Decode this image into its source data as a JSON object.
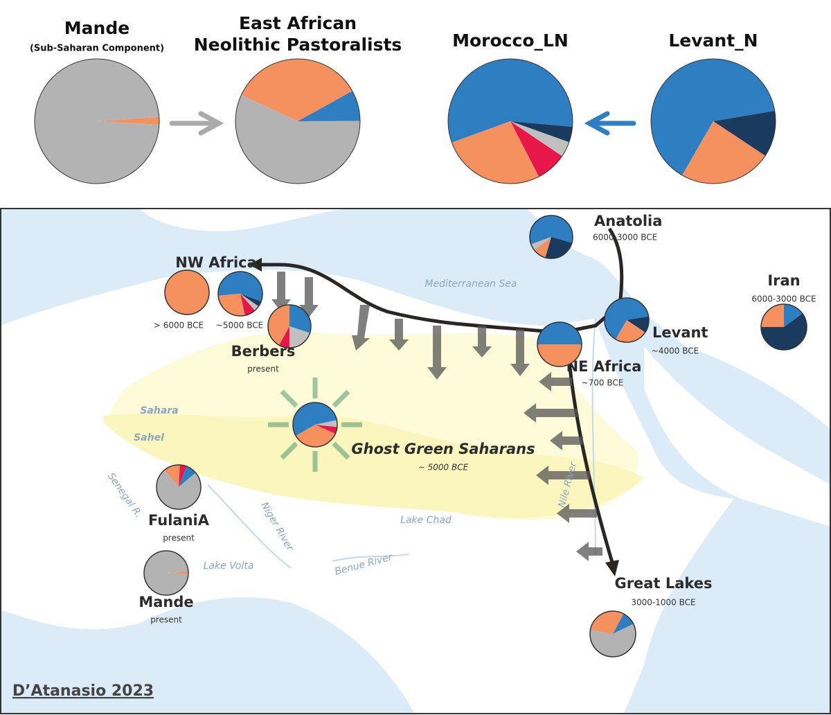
{
  "top_panel": {
    "pies": [
      {
        "title_lines": [
          "Mande"
        ],
        "subtitle": "(Sub-Saharan Component)",
        "slices": [
          {
            "color": "#f4915e",
            "value": 2
          },
          {
            "color": "#b3b3b3",
            "value": 98
          }
        ]
      },
      {
        "title_lines": [
          "East African",
          "Neolithic Pastoralists"
        ],
        "slices": [
          {
            "color": "#f4915e",
            "value": 35
          },
          {
            "color": "#2e7fc1",
            "value": 8
          },
          {
            "color": "#b3b3b3",
            "value": 57
          }
        ]
      },
      {
        "title_lines": [
          "Morocco_LN"
        ],
        "slices": [
          {
            "color": "#2e7fc1",
            "value": 57
          },
          {
            "color": "#1a3a5e",
            "value": 4
          },
          {
            "color": "#c0c0c0",
            "value": 4
          },
          {
            "color": "#e8174a",
            "value": 8
          },
          {
            "color": "#f4915e",
            "value": 27
          }
        ]
      },
      {
        "title_lines": [
          "Levant_N"
        ],
        "slices": [
          {
            "color": "#2e7fc1",
            "value": 64
          },
          {
            "color": "#1a3a5e",
            "value": 12
          },
          {
            "color": "#f4915e",
            "value": 24
          }
        ]
      }
    ]
  },
  "map": {
    "places": [
      {
        "label": "Anatolia",
        "pies": [
          {
            "caption": "6000-3000 BCE",
            "slices": [
              {
                "color": "#2e7fc1",
                "value": 60
              },
              {
                "color": "#1a3a5e",
                "value": 25
              },
              {
                "color": "#f4915e",
                "value": 10
              },
              {
                "color": "#c0c0c0",
                "value": 5
              }
            ]
          }
        ]
      },
      {
        "label": "NW Africa",
        "pies": [
          {
            "caption": "> 6000 BCE",
            "slices": [
              {
                "color": "#f4915e",
                "value": 100
              }
            ]
          },
          {
            "caption": "~5000 BCE",
            "slices": [
              {
                "color": "#2e7fc1",
                "value": 57
              },
              {
                "color": "#1a3a5e",
                "value": 4
              },
              {
                "color": "#c0c0c0",
                "value": 4
              },
              {
                "color": "#e8174a",
                "value": 8
              },
              {
                "color": "#f4915e",
                "value": 27
              }
            ]
          }
        ]
      },
      {
        "label": "Berbers",
        "pies": [
          {
            "caption": "present",
            "slices": [
              {
                "color": "#2e7fc1",
                "value": 30
              },
              {
                "color": "#c0c0c0",
                "value": 20
              },
              {
                "color": "#e8174a",
                "value": 8
              },
              {
                "color": "#f4915e",
                "value": 42
              }
            ]
          }
        ]
      },
      {
        "label": "Levant",
        "pies": [
          {
            "caption": "~4000 BCE",
            "slices": [
              {
                "color": "#2e7fc1",
                "value": 64
              },
              {
                "color": "#1a3a5e",
                "value": 12
              },
              {
                "color": "#f4915e",
                "value": 24
              }
            ]
          }
        ]
      },
      {
        "label": "NE Africa",
        "pies": [
          {
            "caption": "~700 BCE",
            "slices": [
              {
                "color": "#2e7fc1",
                "value": 50
              },
              {
                "color": "#f4915e",
                "value": 50
              }
            ]
          }
        ]
      },
      {
        "label": "Iran",
        "pies": [
          {
            "caption": "6000-3000 BCE",
            "slices": [
              {
                "color": "#f4915e",
                "value": 25
              },
              {
                "color": "#2e7fc1",
                "value": 15
              },
              {
                "color": "#1a3a5e",
                "value": 60
              }
            ]
          }
        ]
      },
      {
        "label": "Ghost Green Saharans",
        "pies": [
          {
            "caption": "~ 5000 BCE",
            "slices": [
              {
                "color": "#2e7fc1",
                "value": 55
              },
              {
                "color": "#c0c0c0",
                "value": 5
              },
              {
                "color": "#e8174a",
                "value": 5
              },
              {
                "color": "#f4915e",
                "value": 35
              }
            ]
          }
        ]
      },
      {
        "label": "FulaniA",
        "pies": [
          {
            "caption": "present",
            "slices": [
              {
                "color": "#f4915e",
                "value": 12
              },
              {
                "color": "#e8174a",
                "value": 5
              },
              {
                "color": "#2e7fc1",
                "value": 8
              },
              {
                "color": "#b3b3b3",
                "value": 75
              }
            ]
          }
        ]
      },
      {
        "label": "Mande",
        "pies": [
          {
            "caption": "present",
            "slices": [
              {
                "color": "#f4915e",
                "value": 2
              },
              {
                "color": "#b3b3b3",
                "value": 98
              }
            ]
          }
        ]
      },
      {
        "label": "Great Lakes",
        "pies": [
          {
            "caption": "3000-1000 BCE",
            "slices": [
              {
                "color": "#f4915e",
                "value": 30
              },
              {
                "color": "#2e7fc1",
                "value": 10
              },
              {
                "color": "#b3b3b3",
                "value": 60
              }
            ]
          }
        ]
      }
    ],
    "features": [
      "Mediterranean Sea",
      "Sahara",
      "Sahel",
      "Senegal R.",
      "Niger River",
      "Nile River",
      "Lake Chad",
      "Lake Volta",
      "Benue River"
    ],
    "credit": "D’Atanasio 2023"
  }
}
